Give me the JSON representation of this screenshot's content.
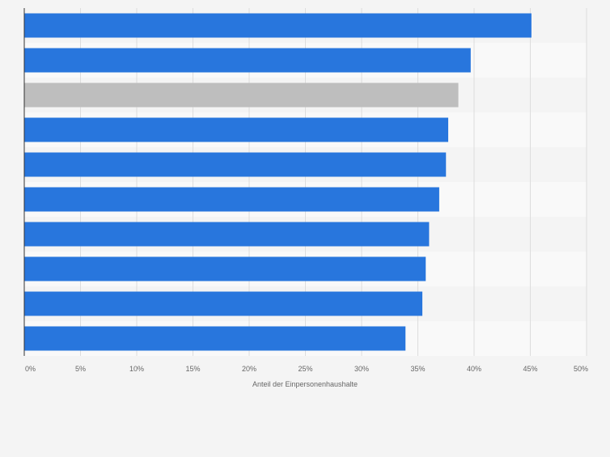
{
  "chart_data": {
    "type": "bar",
    "orientation": "horizontal",
    "title": "",
    "xlabel": "Anteil der Einpersonenhaushalte",
    "ylabel": "",
    "xlim": [
      0,
      50
    ],
    "x_tick_labels": [
      "0%",
      "5%",
      "10%",
      "15%",
      "20%",
      "25%",
      "30%",
      "35%",
      "40%",
      "45%",
      "50%"
    ],
    "x_tick_values": [
      0,
      5,
      10,
      15,
      20,
      25,
      30,
      35,
      40,
      45,
      50
    ],
    "categories": [
      "",
      "",
      "",
      "",
      "",
      "",
      "",
      "",
      "",
      ""
    ],
    "values": [
      45.1,
      39.7,
      38.6,
      37.7,
      37.5,
      36.9,
      36.0,
      35.7,
      35.4,
      33.9
    ],
    "highlight_index": 2,
    "grid": true,
    "legend": "none",
    "colors": {
      "bar": "#2876dd",
      "highlight": "#bebebe",
      "grid": "#dddddd",
      "band_alt": "#f9f9f9",
      "background": "#f4f4f4",
      "axis": "#333333",
      "text": "#666666"
    }
  }
}
